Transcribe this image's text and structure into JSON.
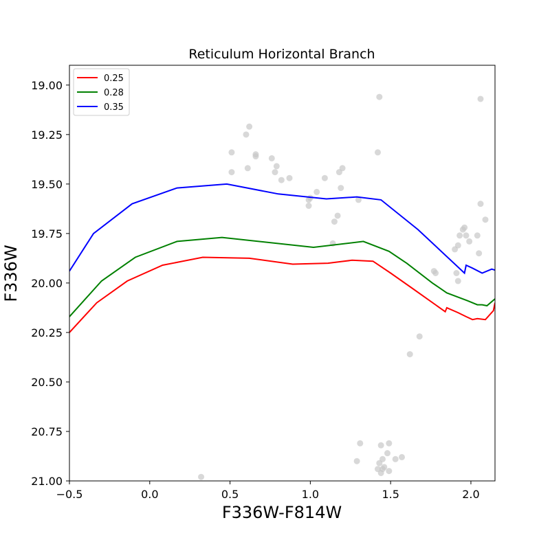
{
  "chart_data": {
    "type": "scatter",
    "title": "Reticulum Horizontal Branch",
    "xlabel": "F336W-F814W",
    "ylabel": "F336W",
    "xlim": [
      -0.5,
      2.15
    ],
    "ylim": [
      21.0,
      18.9
    ],
    "y_inverted": true,
    "grid": false,
    "legend_position": "upper-left",
    "x_ticks": [
      -0.5,
      0.0,
      0.5,
      1.0,
      1.5,
      2.0
    ],
    "x_tick_labels": [
      "−0.5",
      "0.0",
      "0.5",
      "1.0",
      "1.5",
      "2.0"
    ],
    "y_ticks": [
      19.0,
      19.25,
      19.5,
      19.75,
      20.0,
      20.25,
      20.5,
      20.75,
      21.0
    ],
    "y_tick_labels": [
      "19.00",
      "19.25",
      "19.50",
      "19.75",
      "20.00",
      "20.25",
      "20.50",
      "20.75",
      "21.00"
    ],
    "series": [
      {
        "name": "0.25",
        "kind": "line",
        "color": "#ff0000",
        "x": [
          -0.5,
          -0.33,
          -0.14,
          0.08,
          0.33,
          0.62,
          0.89,
          1.11,
          1.26,
          1.39,
          1.5,
          1.64,
          1.84,
          1.85,
          1.92,
          1.97,
          2.01,
          2.04,
          2.09,
          2.14,
          2.15
        ],
        "y": [
          20.25,
          20.1,
          19.99,
          19.91,
          19.87,
          19.875,
          19.905,
          19.9,
          19.885,
          19.89,
          19.95,
          20.03,
          20.145,
          20.125,
          20.15,
          20.17,
          20.185,
          20.18,
          20.185,
          20.14,
          20.1
        ]
      },
      {
        "name": "0.28",
        "kind": "line",
        "color": "#008000",
        "x": [
          -0.5,
          -0.3,
          -0.09,
          0.17,
          0.45,
          1.02,
          1.33,
          1.49,
          1.6,
          1.76,
          1.85,
          1.98,
          2.04,
          2.07,
          2.1,
          2.15
        ],
        "y": [
          20.17,
          19.99,
          19.87,
          19.79,
          19.77,
          19.82,
          19.79,
          19.84,
          19.9,
          20.0,
          20.05,
          20.09,
          20.11,
          20.11,
          20.115,
          20.08
        ]
      },
      {
        "name": "0.35",
        "kind": "line",
        "color": "#0000ff",
        "x": [
          -0.5,
          -0.35,
          -0.11,
          0.17,
          0.48,
          0.8,
          1.1,
          1.29,
          1.44,
          1.67,
          1.96,
          1.97,
          2.01,
          2.07,
          2.13,
          2.15
        ],
        "y": [
          19.94,
          19.75,
          19.6,
          19.52,
          19.5,
          19.55,
          19.575,
          19.565,
          19.58,
          19.73,
          19.95,
          19.91,
          19.925,
          19.95,
          19.93,
          19.935
        ]
      },
      {
        "name": "",
        "kind": "scatter",
        "color": "#c8c8c8",
        "x": [
          1.43,
          2.06,
          0.62,
          0.6,
          0.51,
          1.42,
          0.66,
          0.66,
          0.76,
          0.61,
          0.51,
          0.79,
          0.78,
          0.82,
          0.87,
          1.2,
          1.18,
          1.09,
          1.19,
          1.04,
          1.0,
          0.99,
          1.3,
          0.99,
          2.06,
          1.17,
          1.15,
          2.09,
          1.96,
          1.95,
          1.93,
          1.97,
          2.04,
          1.99,
          1.14,
          1.92,
          1.9,
          2.05,
          1.77,
          1.78,
          1.91,
          1.92,
          1.68,
          1.62,
          1.31,
          1.49,
          1.44,
          1.48,
          1.45,
          1.57,
          1.53,
          1.29,
          1.43,
          1.46,
          1.42,
          1.45,
          1.49,
          1.44,
          0.32
        ],
        "y": [
          19.06,
          19.07,
          19.21,
          19.25,
          19.34,
          19.34,
          19.35,
          19.36,
          19.37,
          19.42,
          19.44,
          19.41,
          19.44,
          19.48,
          19.47,
          19.42,
          19.44,
          19.47,
          19.52,
          19.54,
          19.57,
          19.58,
          19.58,
          19.61,
          19.6,
          19.66,
          19.69,
          19.68,
          19.72,
          19.73,
          19.76,
          19.76,
          19.76,
          19.79,
          19.8,
          19.81,
          19.83,
          19.85,
          19.94,
          19.95,
          19.95,
          19.99,
          20.27,
          20.36,
          20.81,
          20.81,
          20.82,
          20.86,
          20.89,
          20.88,
          20.89,
          20.9,
          20.91,
          20.93,
          20.94,
          20.94,
          20.95,
          20.96,
          20.98
        ]
      }
    ]
  }
}
